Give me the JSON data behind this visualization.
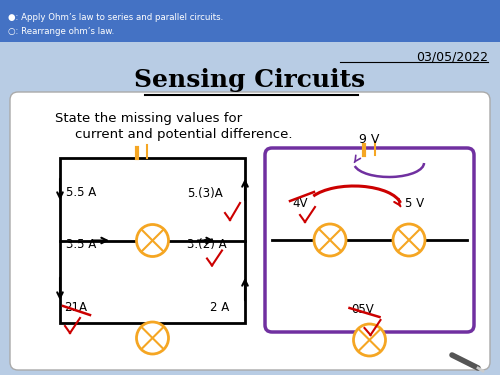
{
  "bg_color": "#b8cce4",
  "header_color": "#4472c4",
  "header_text1": "●: Apply Ohm’s law to series and parallel circuits.",
  "header_text2": "○: Rearrange ohm’s law.",
  "date_text": "03/05/2022",
  "title": "Sensing Circuits",
  "subtitle1": "State the missing values for",
  "subtitle2": "current and potential difference.",
  "box_bg": "#ffffff",
  "orange_color": "#f5a623",
  "purple_color": "#7030a0",
  "red_color": "#cc0000",
  "black_color": "#000000"
}
